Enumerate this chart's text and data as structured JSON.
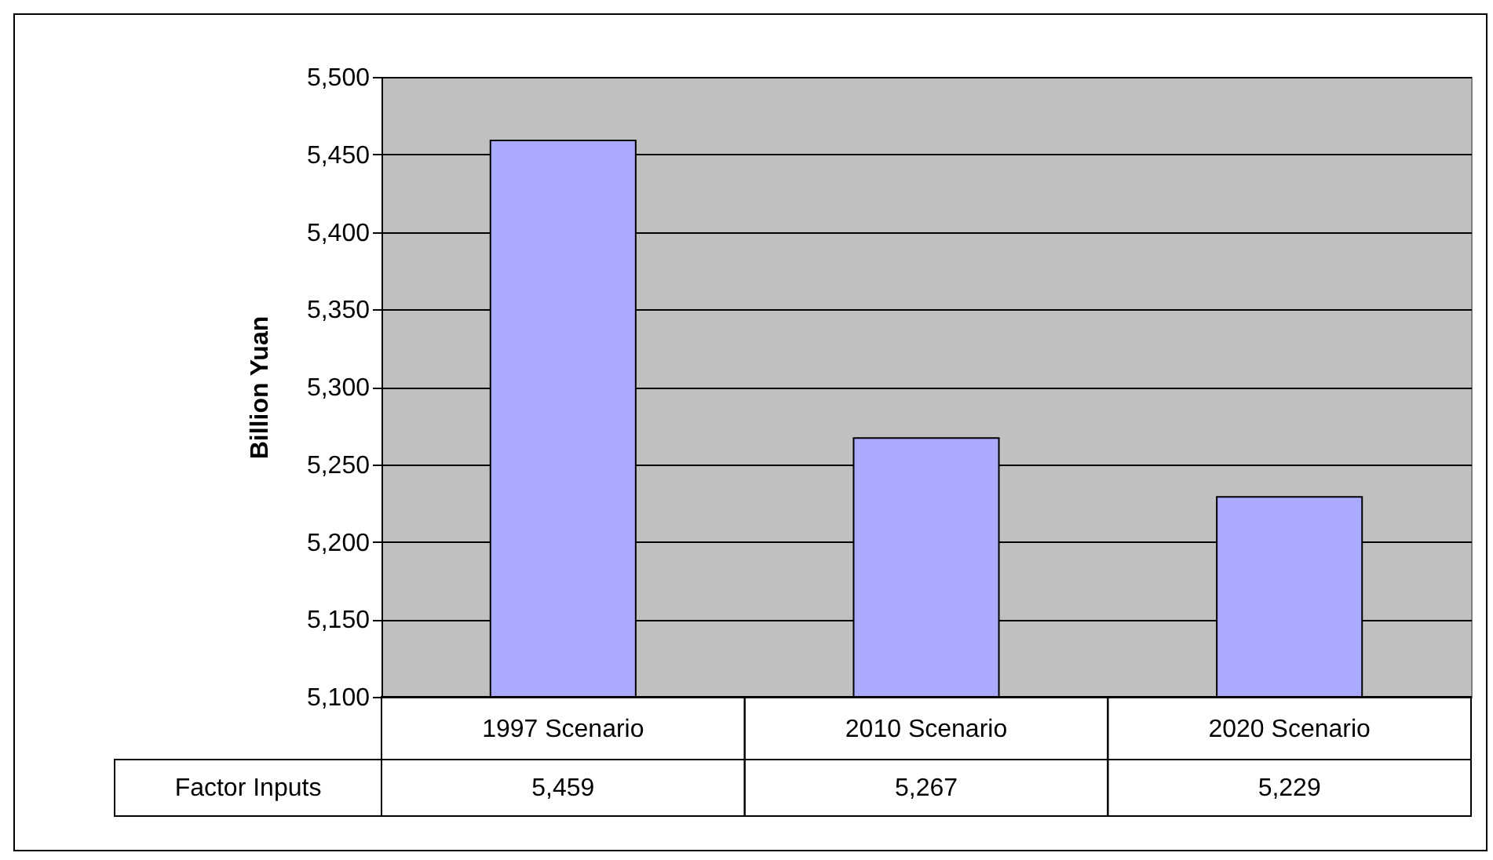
{
  "chart_data": {
    "type": "bar",
    "ylabel": "Billion Yuan",
    "categories": [
      "1997 Scenario",
      "2010 Scenario",
      "2020 Scenario"
    ],
    "series": [
      {
        "name": "Factor Inputs",
        "color": "#aaaaff",
        "values": [
          5459,
          5267,
          5229
        ],
        "value_labels": [
          "5,459",
          "5,267",
          "5,229"
        ]
      }
    ],
    "ylim": [
      5100,
      5500
    ],
    "yticks": [
      {
        "value": 5100,
        "label": "5,100"
      },
      {
        "value": 5150,
        "label": "5,150"
      },
      {
        "value": 5200,
        "label": "5,200"
      },
      {
        "value": 5250,
        "label": "5,250"
      },
      {
        "value": 5300,
        "label": "5,300"
      },
      {
        "value": 5350,
        "label": "5,350"
      },
      {
        "value": 5400,
        "label": "5,400"
      },
      {
        "value": 5450,
        "label": "5,450"
      },
      {
        "value": 5500,
        "label": "5,500"
      }
    ],
    "grid": "y"
  }
}
